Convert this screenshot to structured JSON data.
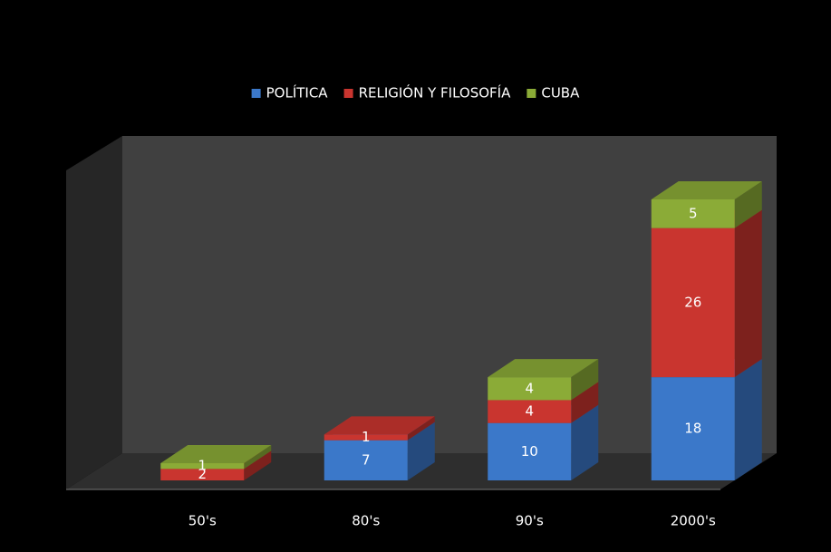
{
  "chart_data": {
    "type": "bar",
    "stacked": true,
    "categories": [
      "50's",
      "80's",
      "90's",
      "2000's"
    ],
    "series": [
      {
        "name": "POLÍTICA",
        "color": "#3b78c9",
        "values": [
          null,
          7,
          10,
          18
        ]
      },
      {
        "name": "RELIGIÓN Y FILOSOFÍA",
        "color": "#c9352f",
        "values": [
          2,
          1,
          4,
          26
        ]
      },
      {
        "name": "CUBA",
        "color": "#8bab37",
        "values": [
          1,
          null,
          4,
          5
        ]
      }
    ],
    "legend": "top"
  }
}
